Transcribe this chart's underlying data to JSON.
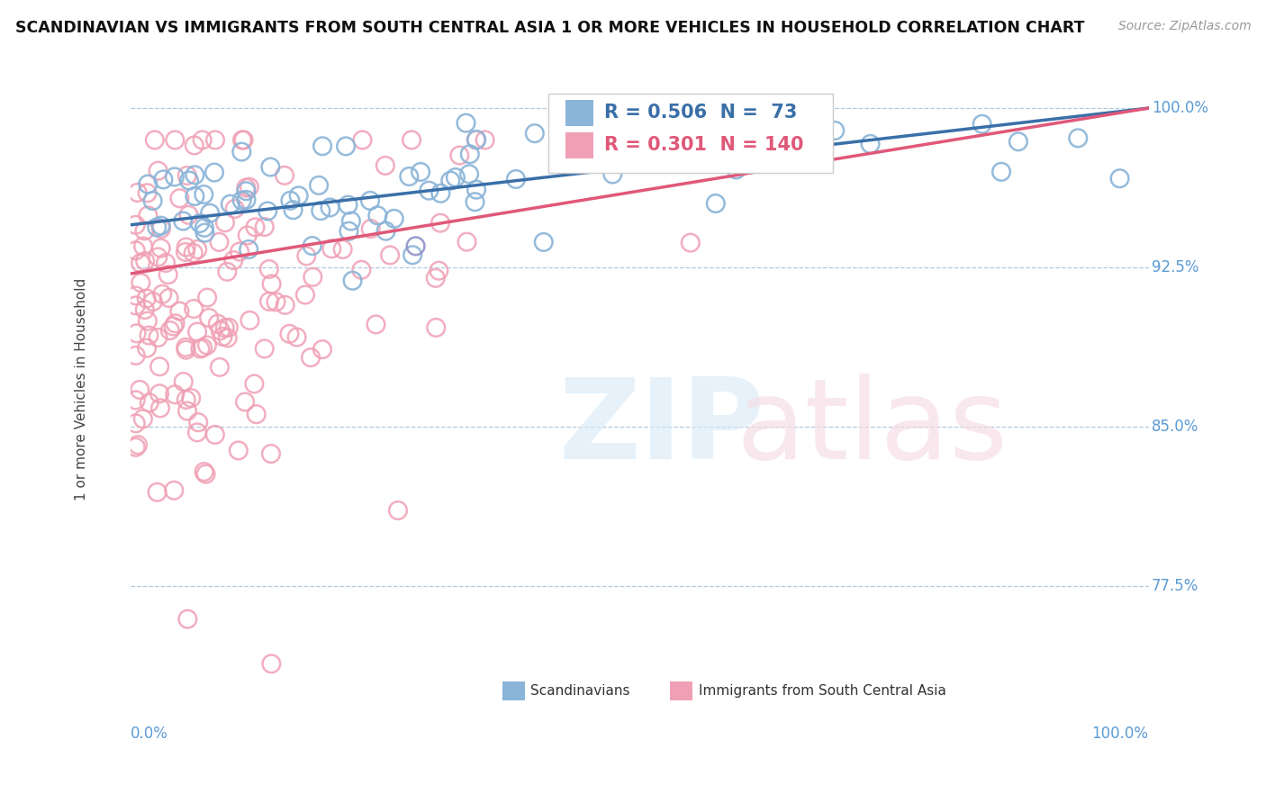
{
  "title": "SCANDINAVIAN VS IMMIGRANTS FROM SOUTH CENTRAL ASIA 1 OR MORE VEHICLES IN HOUSEHOLD CORRELATION CHART",
  "source": "Source: ZipAtlas.com",
  "ylabel": "1 or more Vehicles in Household",
  "xmin": 0.0,
  "xmax": 1.0,
  "ymin": 0.715,
  "ymax": 1.02,
  "blue_R": 0.506,
  "blue_N": 73,
  "pink_R": 0.301,
  "pink_N": 140,
  "blue_color": "#8ab4d8",
  "pink_color": "#f0a0b5",
  "blue_line_color": "#3a6fa8",
  "pink_line_color": "#e05878",
  "purple_color": "#9090c8",
  "legend_blue_label": "Scandinavians",
  "legend_pink_label": "Immigrants from South Central Asia",
  "ytick_positions": [
    0.775,
    0.85,
    0.925,
    1.0
  ],
  "ytick_labels": [
    "77.5%",
    "85.0%",
    "92.5%",
    "100.0%"
  ],
  "blue_trend_x0": 0.0,
  "blue_trend_y0": 0.945,
  "blue_trend_x1": 1.0,
  "blue_trend_y1": 1.0,
  "pink_trend_x0": 0.0,
  "pink_trend_y0": 0.922,
  "pink_trend_x1": 1.0,
  "pink_trend_y1": 1.0
}
